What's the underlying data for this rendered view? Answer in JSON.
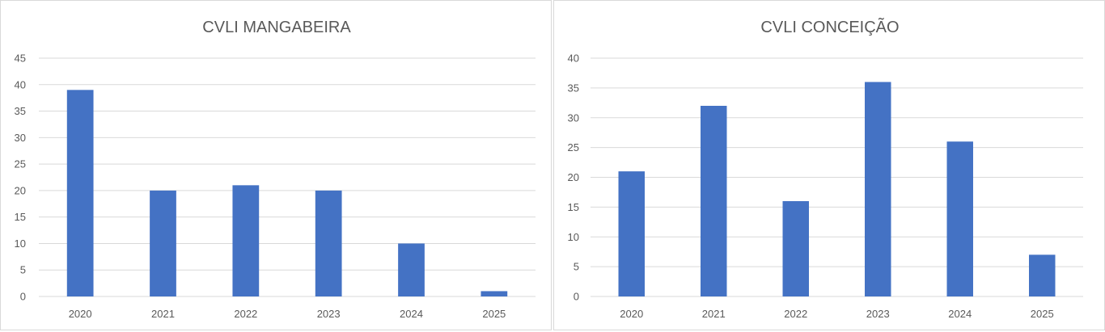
{
  "chart_data": [
    {
      "type": "bar",
      "title": "CVLI MANGABEIRA",
      "categories": [
        "2020",
        "2021",
        "2022",
        "2023",
        "2024",
        "2025"
      ],
      "values": [
        39,
        20,
        21,
        20,
        10,
        1
      ],
      "ylim": [
        0,
        45
      ],
      "yticks": [
        0,
        5,
        10,
        15,
        20,
        25,
        30,
        35,
        40,
        45
      ],
      "grid": true,
      "color": "#4472C4"
    },
    {
      "type": "bar",
      "title": "CVLI CONCEIÇÃO",
      "categories": [
        "2020",
        "2021",
        "2022",
        "2023",
        "2024",
        "2025"
      ],
      "values": [
        21,
        32,
        16,
        36,
        26,
        7
      ],
      "ylim": [
        0,
        40
      ],
      "yticks": [
        0,
        5,
        10,
        15,
        20,
        25,
        30,
        35,
        40
      ],
      "grid": true,
      "color": "#4472C4"
    }
  ]
}
